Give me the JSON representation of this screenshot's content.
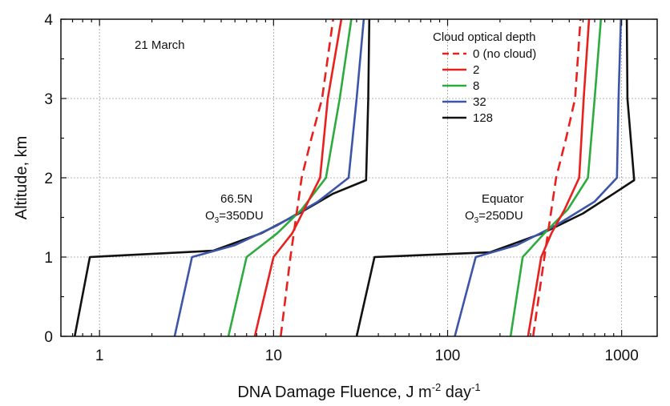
{
  "chart_data": {
    "type": "line",
    "xlabel": "DNA Damage Fluence, J m",
    "xlabel_sup1": "-2",
    "xlabel_mid": " day",
    "xlabel_sup2": "-1",
    "ylabel": "Altitude, km",
    "xscale": "log",
    "xlim": [
      0.6,
      1600
    ],
    "ylim": [
      0,
      4
    ],
    "x_ticks": [
      1,
      10,
      100,
      1000
    ],
    "x_tick_labels": [
      "1",
      "10",
      "100",
      "1000"
    ],
    "y_ticks": [
      0,
      1,
      2,
      3,
      4
    ],
    "y_tick_labels": [
      "0",
      "1",
      "2",
      "3",
      "4"
    ],
    "grid": true,
    "annotations": {
      "date": "21 March",
      "left_site": "66.5N",
      "left_ozone_prefix": "O",
      "left_ozone_sub": "3",
      "left_ozone_suffix": "=350DU",
      "right_site": "Equator",
      "right_ozone_prefix": "O",
      "right_ozone_sub": "3",
      "right_ozone_suffix": "=250DU"
    },
    "legend": {
      "title": "Cloud optical depth",
      "position": "top-right"
    },
    "series": [
      {
        "name": "0 (no cloud)",
        "color": "#e8201e",
        "dash": true,
        "groups": [
          {
            "x": [
              11,
              12.5,
              14.5,
              16.5,
              19,
              22
            ],
            "y": [
              0,
              1,
              2,
              2.5,
              3,
              4
            ]
          },
          {
            "x": [
              310,
              360,
              420,
              480,
              540,
              580
            ],
            "y": [
              0,
              1,
              2,
              2.5,
              3,
              4
            ]
          }
        ]
      },
      {
        "name": "2",
        "color": "#e8201e",
        "dash": false,
        "groups": [
          {
            "x": [
              7.8,
              10,
              12.8,
              15,
              18.5,
              20.5,
              24.5
            ],
            "y": [
              0,
              1,
              1.3,
              1.6,
              2,
              3,
              4
            ]
          },
          {
            "x": [
              290,
              345,
              395,
              470,
              570,
              605,
              650
            ],
            "y": [
              0,
              1,
              1.3,
              1.6,
              2,
              3,
              4
            ]
          }
        ]
      },
      {
        "name": "8",
        "color": "#2eab3e",
        "dash": false,
        "groups": [
          {
            "x": [
              5.5,
              7,
              10.5,
              14.5,
              20,
              24,
              28
            ],
            "y": [
              0,
              1,
              1.3,
              1.6,
              2,
              3,
              4
            ]
          },
          {
            "x": [
              230,
              270,
              360,
              490,
              640,
              700,
              760
            ],
            "y": [
              0,
              1,
              1.3,
              1.6,
              2,
              3,
              4
            ]
          }
        ]
      },
      {
        "name": "32",
        "color": "#3c55a8",
        "dash": false,
        "groups": [
          {
            "x": [
              2.7,
              3.4,
              6,
              10.5,
              18,
              27,
              30,
              33
            ],
            "y": [
              0,
              1,
              1.15,
              1.4,
              1.7,
              2,
              3,
              4
            ]
          },
          {
            "x": [
              110,
              145,
              250,
              420,
              700,
              940,
              960,
              990
            ],
            "y": [
              0,
              1,
              1.15,
              1.4,
              1.7,
              2,
              3,
              4
            ]
          }
        ]
      },
      {
        "name": "128",
        "color": "#111111",
        "dash": false,
        "groups": [
          {
            "x": [
              0.72,
              0.88,
              4.5,
              8.5,
              14,
              22,
              34,
              35,
              35.5
            ],
            "y": [
              0,
              1,
              1.08,
              1.3,
              1.55,
              1.8,
              1.97,
              3,
              4
            ]
          },
          {
            "x": [
              30,
              38,
              175,
              350,
              600,
              900,
              1180,
              1080,
              1070
            ],
            "y": [
              0,
              1,
              1.06,
              1.3,
              1.55,
              1.8,
              1.97,
              3,
              4
            ]
          }
        ]
      }
    ]
  }
}
